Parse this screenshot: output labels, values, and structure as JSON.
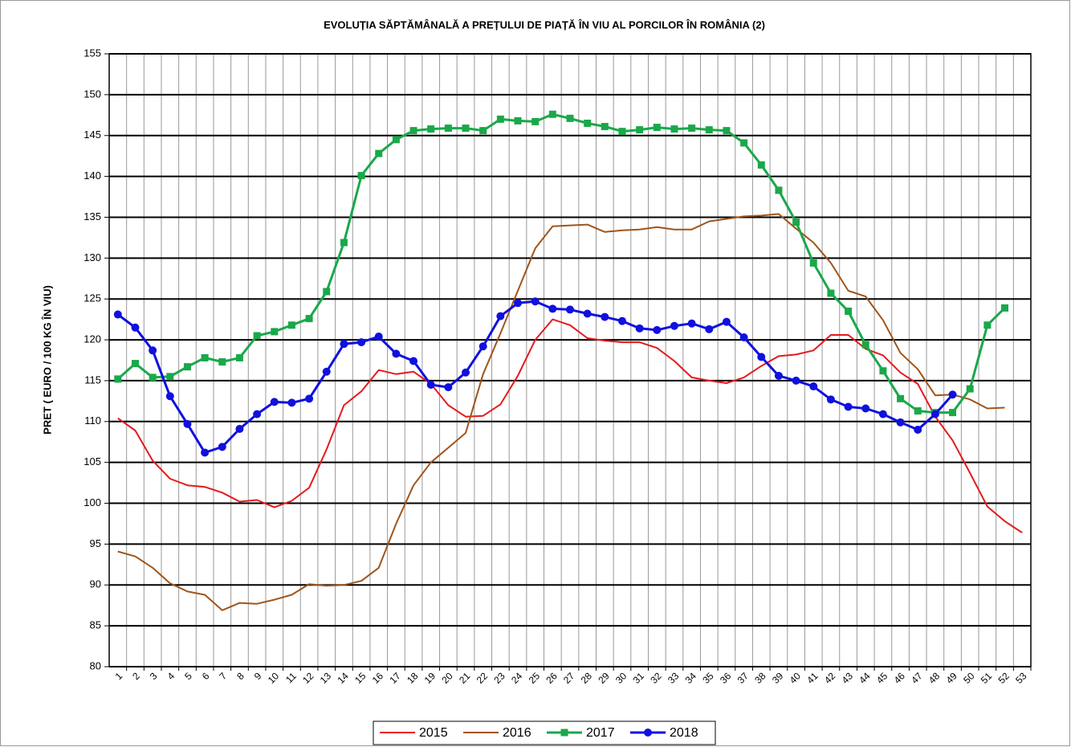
{
  "chart_data": {
    "type": "line",
    "title": "EVOLUȚIA SĂPTĂMÂNALĂ A PREȚULUI  DE PIAȚĂ ÎN VIU AL PORCILOR ÎN ROMÂNIA (2)",
    "y_label": "PRET ( EURO / 100 KG ÎN VIU)",
    "categories": [
      "1",
      "2",
      "3",
      "4",
      "5",
      "6",
      "7",
      "8",
      "9",
      "10",
      "11",
      "12",
      "13",
      "14",
      "15",
      "16",
      "17",
      "18",
      "19",
      "20",
      "21",
      "22",
      "23",
      "24",
      "25",
      "26",
      "27",
      "28",
      "29",
      "30",
      "31",
      "32",
      "33",
      "34",
      "35",
      "36",
      "37",
      "38",
      "39",
      "40",
      "41",
      "42",
      "43",
      "44",
      "45",
      "46",
      "47",
      "48",
      "49",
      "50",
      "51",
      "52",
      "53"
    ],
    "ylim": [
      80,
      155
    ],
    "yticks": [
      80,
      85,
      90,
      95,
      100,
      105,
      110,
      115,
      120,
      125,
      130,
      135,
      140,
      145,
      150,
      155
    ],
    "grid": true,
    "legend": "bottom",
    "series": [
      {
        "name": "2015",
        "color": "#e41a1c",
        "marker": null,
        "values": [
          110.4,
          108.9,
          105.2,
          103.0,
          102.2,
          102.0,
          101.3,
          100.2,
          100.4,
          99.5,
          100.3,
          101.9,
          106.6,
          112.0,
          113.7,
          116.3,
          115.8,
          116.1,
          114.6,
          112.0,
          110.6,
          110.7,
          112.1,
          115.6,
          120.0,
          122.5,
          121.8,
          120.2,
          119.9,
          119.7,
          119.7,
          119.0,
          117.4,
          115.4,
          115.0,
          114.7,
          115.4,
          116.8,
          118.0,
          118.2,
          118.7,
          120.6,
          120.6,
          118.9,
          118.1,
          116.0,
          114.6,
          110.6,
          107.7,
          103.7,
          99.6,
          97.8,
          96.4
        ]
      },
      {
        "name": "2016",
        "color": "#a0541a",
        "marker": null,
        "values": [
          94.1,
          93.5,
          92.1,
          90.2,
          89.2,
          88.8,
          86.9,
          87.8,
          87.7,
          88.2,
          88.8,
          90.1,
          89.9,
          90.0,
          90.5,
          92.1,
          97.5,
          102.2,
          105.0,
          106.8,
          108.6,
          115.8,
          120.8,
          126.0,
          131.2,
          133.9,
          134.0,
          134.1,
          133.2,
          133.4,
          133.5,
          133.8,
          133.5,
          133.5,
          134.5,
          134.8,
          135.1,
          135.2,
          135.4,
          133.6,
          131.9,
          129.4,
          126.0,
          125.3,
          122.4,
          118.4,
          116.4,
          113.2,
          113.3,
          112.7,
          111.6,
          111.7,
          null
        ]
      },
      {
        "name": "2017",
        "color": "#1aa84a",
        "marker": "square",
        "values": [
          115.2,
          117.1,
          115.4,
          115.5,
          116.7,
          117.8,
          117.3,
          117.8,
          120.5,
          121.0,
          121.8,
          122.6,
          125.9,
          131.9,
          140.1,
          142.8,
          144.5,
          145.6,
          145.8,
          145.9,
          145.9,
          145.6,
          147.0,
          146.8,
          146.7,
          147.6,
          147.1,
          146.5,
          146.1,
          145.5,
          145.7,
          146.0,
          145.8,
          145.9,
          145.7,
          145.6,
          144.1,
          141.4,
          138.3,
          134.4,
          129.4,
          125.7,
          123.5,
          119.4,
          116.2,
          112.8,
          111.3,
          111.1,
          111.1,
          114.0,
          121.8,
          123.9,
          null
        ]
      },
      {
        "name": "2018",
        "color": "#1010e0",
        "marker": "circle",
        "values": [
          123.1,
          121.5,
          118.7,
          113.1,
          109.7,
          106.2,
          106.9,
          109.1,
          110.9,
          112.4,
          112.3,
          112.8,
          116.1,
          119.5,
          119.7,
          120.4,
          118.3,
          117.4,
          114.5,
          114.2,
          116.0,
          119.2,
          122.9,
          124.5,
          124.7,
          123.8,
          123.7,
          123.2,
          122.8,
          122.3,
          121.4,
          121.2,
          121.7,
          122.0,
          121.3,
          122.2,
          120.3,
          117.9,
          115.6,
          115.0,
          114.3,
          112.7,
          111.8,
          111.6,
          110.9,
          109.9,
          109.0,
          110.9,
          113.3,
          null,
          null,
          null,
          null
        ]
      }
    ]
  }
}
